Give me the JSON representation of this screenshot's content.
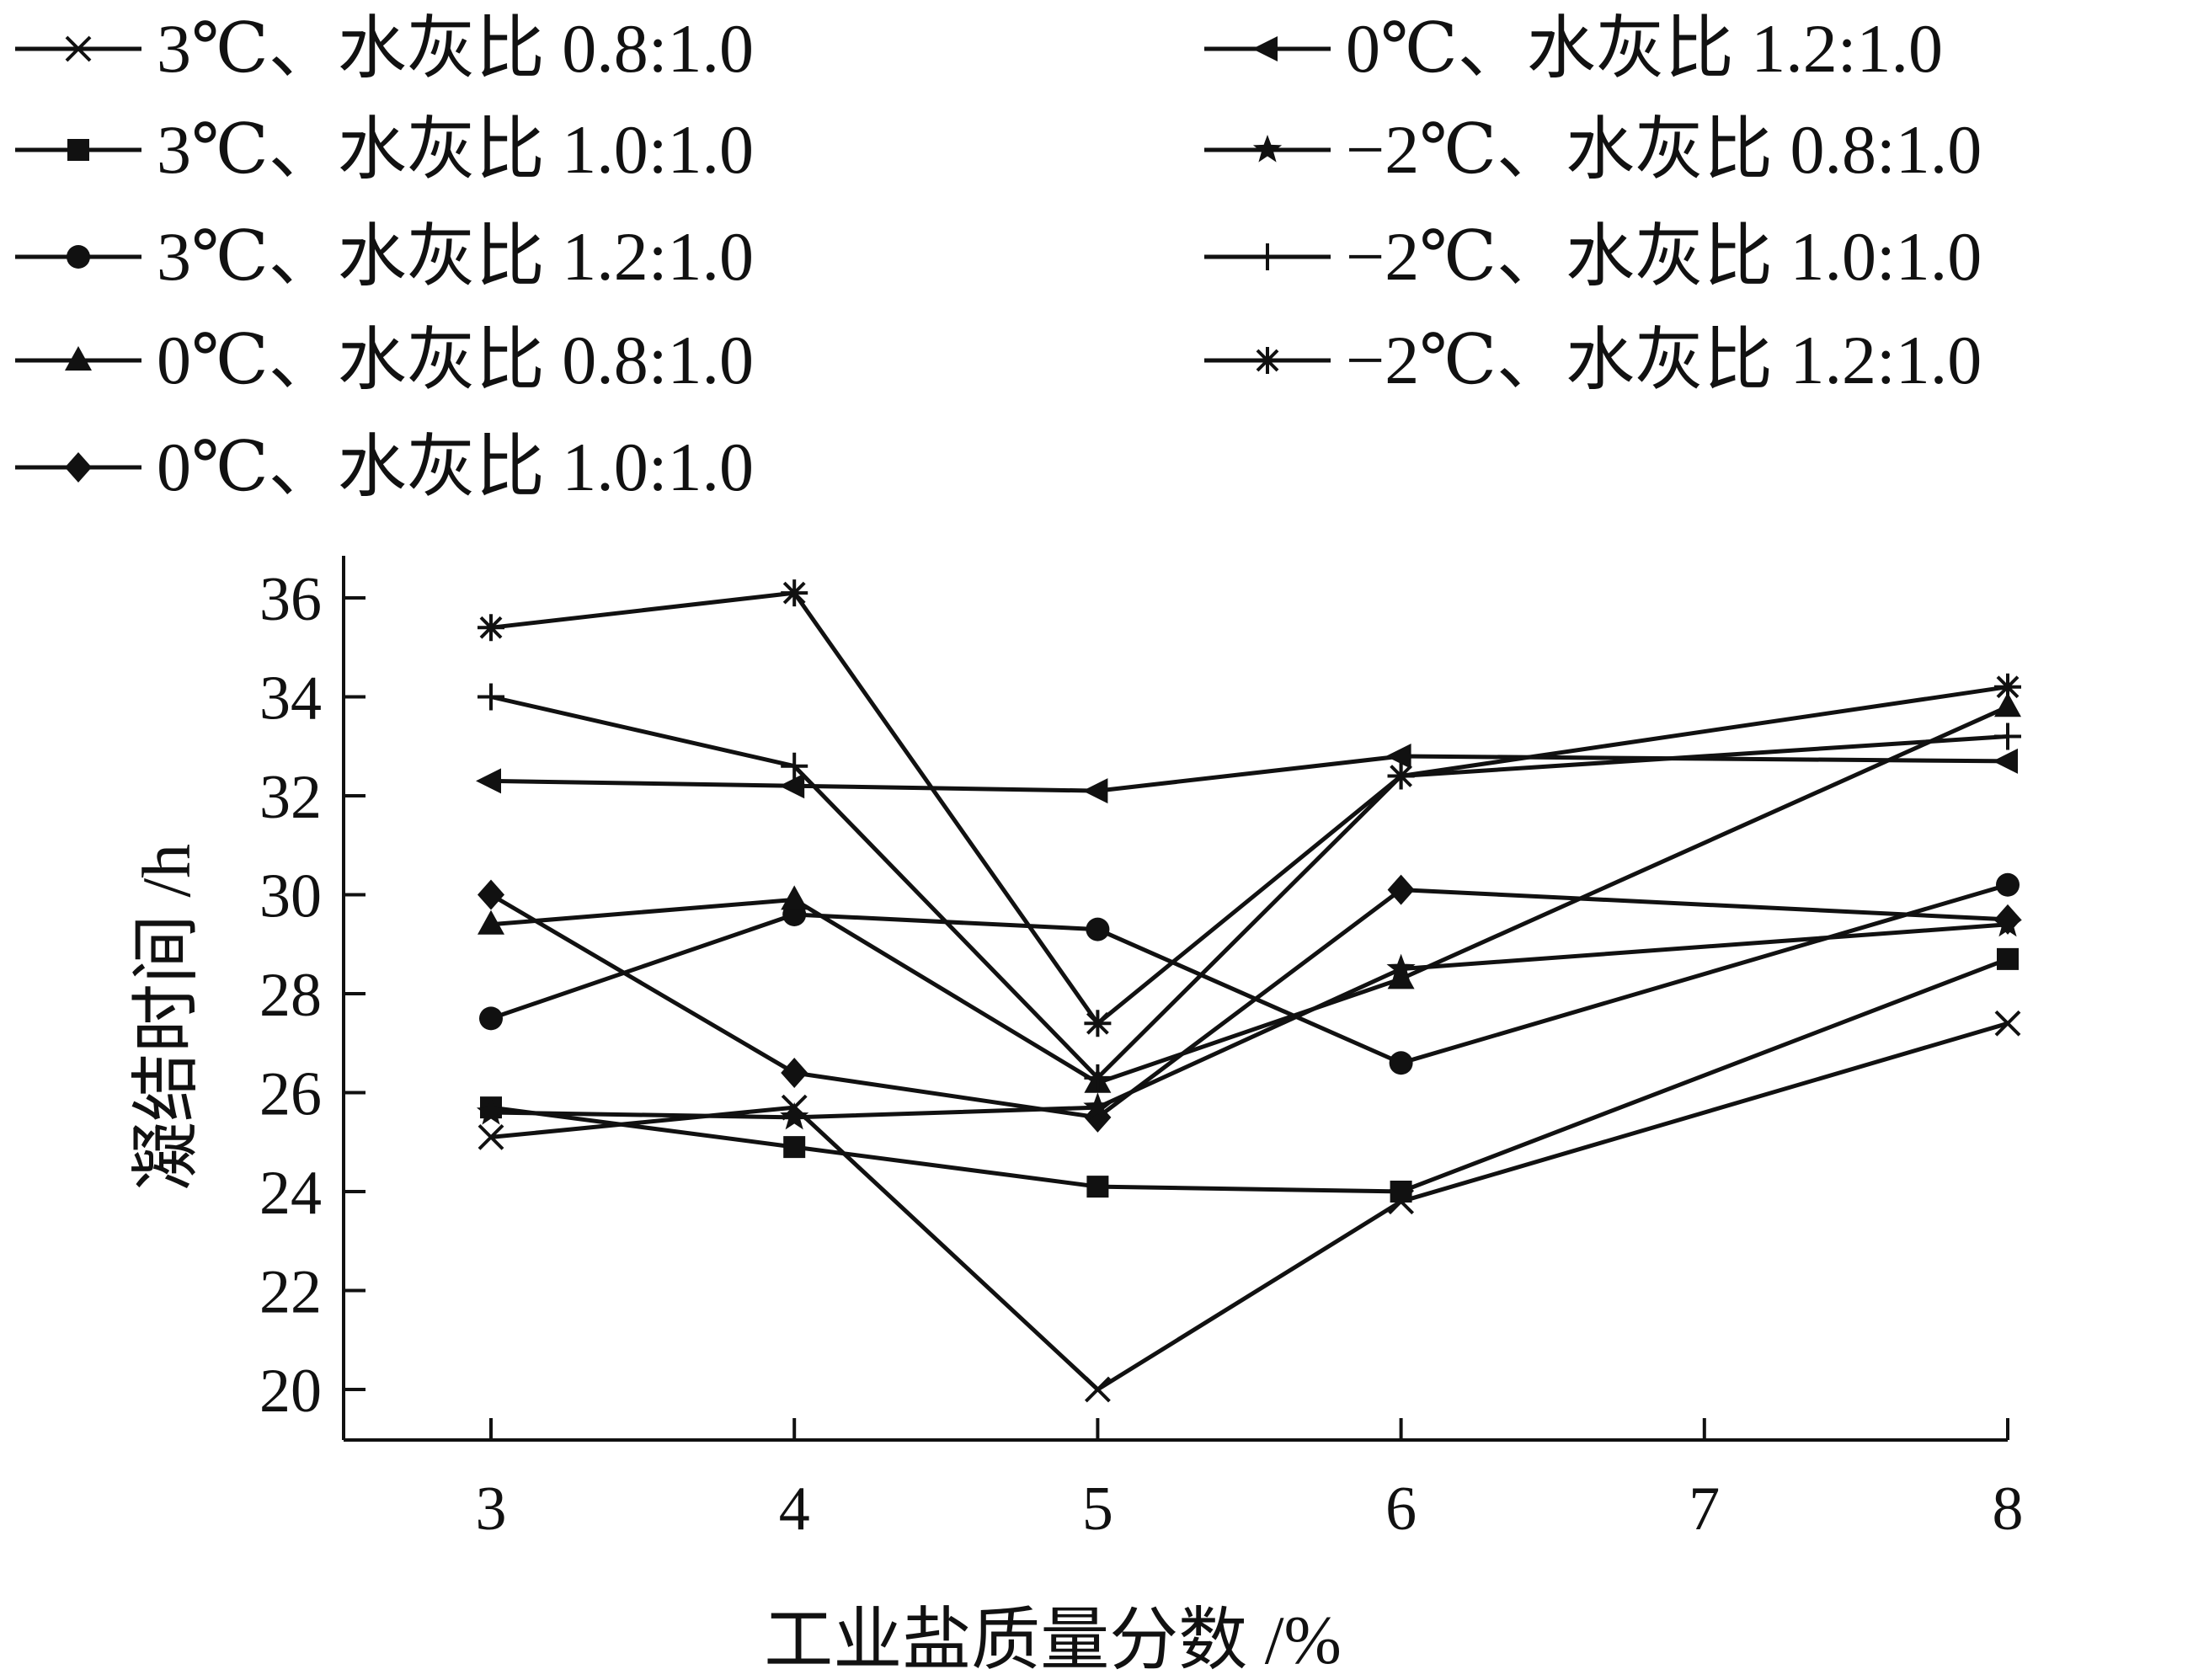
{
  "chart_data": {
    "type": "line",
    "title": "",
    "xlabel": "工业盐质量分数 /%",
    "ylabel": "凝结时间 /h",
    "xlim": [
      2.5,
      8
    ],
    "ylim": [
      19,
      36
    ],
    "x_ticks": [
      "3",
      "4",
      "5",
      "6",
      "7",
      "8"
    ],
    "y_ticks": [
      "20",
      "22",
      "24",
      "26",
      "28",
      "30",
      "32",
      "34",
      "36"
    ],
    "x": [
      3,
      4,
      5,
      6,
      8
    ],
    "legend_position": "top",
    "grid": false,
    "series": [
      {
        "name": "3℃、水灰比 0.8:1.0",
        "marker": "x",
        "values": [
          25.1,
          25.7,
          20.0,
          23.8,
          27.4
        ]
      },
      {
        "name": "3℃、水灰比 1.0:1.0",
        "marker": "square",
        "values": [
          25.7,
          24.9,
          24.1,
          24.0,
          28.7
        ]
      },
      {
        "name": "3℃、水灰比 1.2:1.0",
        "marker": "circle",
        "values": [
          27.5,
          29.6,
          29.3,
          26.6,
          30.2
        ]
      },
      {
        "name": "0℃、水灰比 0.8:1.0",
        "marker": "triangle",
        "values": [
          29.4,
          29.9,
          26.2,
          28.3,
          33.8
        ]
      },
      {
        "name": "0℃、水灰比 1.0:1.0",
        "marker": "diamond",
        "values": [
          30.0,
          26.4,
          25.5,
          30.1,
          29.5
        ]
      },
      {
        "name": "0℃、水灰比 1.2:1.0",
        "marker": "triangle-left",
        "values": [
          32.3,
          32.2,
          32.1,
          32.8,
          32.7
        ]
      },
      {
        "name": "−2℃、水灰比 0.8:1.0",
        "marker": "star",
        "values": [
          25.6,
          25.5,
          25.7,
          28.5,
          29.4
        ]
      },
      {
        "name": "−2℃、水灰比 1.0:1.0",
        "marker": "plus",
        "values": [
          34.0,
          32.6,
          26.3,
          32.4,
          33.2
        ]
      },
      {
        "name": "−2℃、水灰比 1.2:1.0",
        "marker": "asterisk",
        "values": [
          35.4,
          36.1,
          27.4,
          32.4,
          34.2
        ]
      }
    ]
  }
}
